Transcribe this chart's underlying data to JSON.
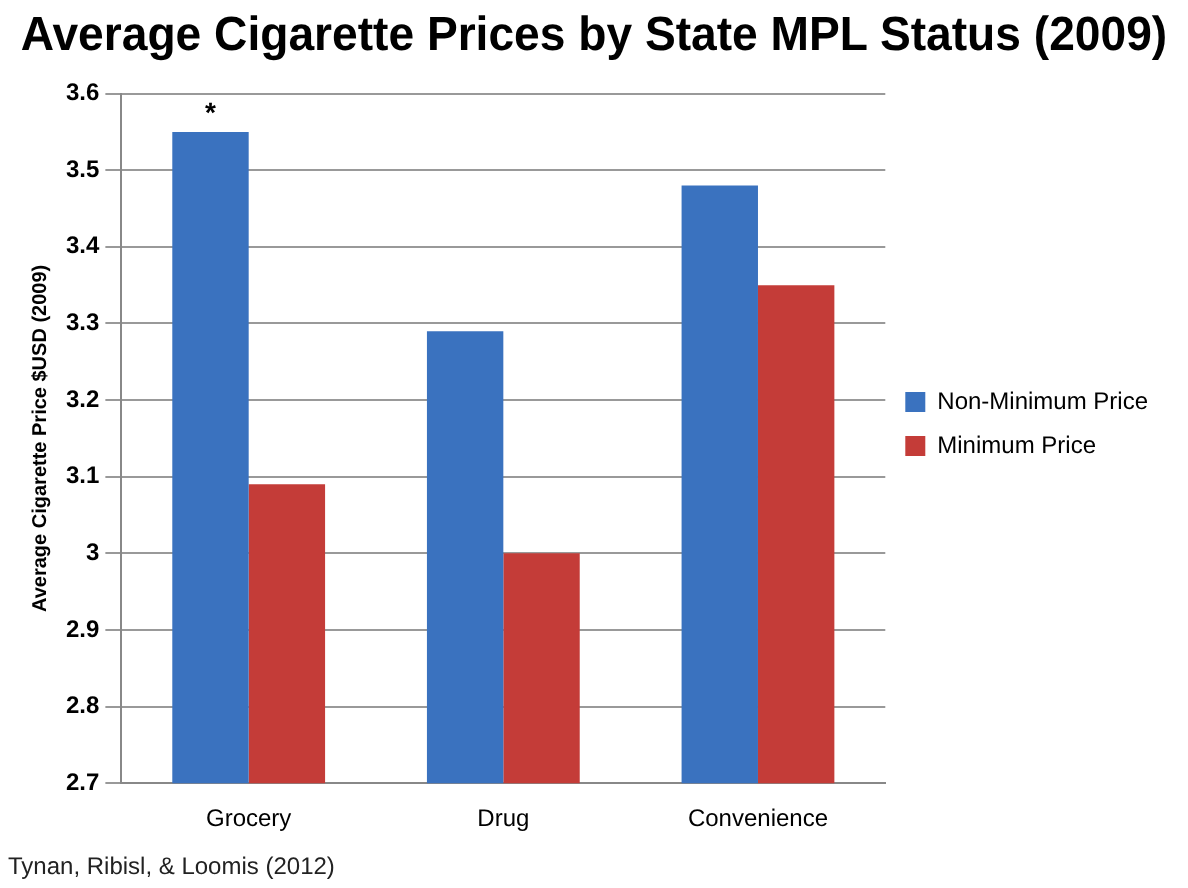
{
  "chart_data": {
    "type": "bar",
    "title": "Average Cigarette Prices by State MPL Status (2009)",
    "ylabel": "Average Cigarette Price $USD (2009)",
    "categories": [
      "Grocery",
      "Drug",
      "Convenience"
    ],
    "series": [
      {
        "name": "Non-Minimum Price",
        "color": "#3a72bf",
        "values": [
          3.55,
          3.29,
          3.48
        ]
      },
      {
        "name": "Minimum Price",
        "color": "#c43c38",
        "values": [
          3.09,
          3.0,
          3.35
        ]
      }
    ],
    "ylim": [
      2.7,
      3.6
    ],
    "yticks": [
      2.7,
      2.8,
      2.9,
      3,
      3.1,
      3.2,
      3.3,
      3.4,
      3.5,
      3.6
    ],
    "grid": "y",
    "legend": "right",
    "annotations": [
      {
        "text": "*",
        "x": "Grocery",
        "y": 3.55
      },
      "Tynan, Ribisl, & Loomis (2012)"
    ]
  }
}
